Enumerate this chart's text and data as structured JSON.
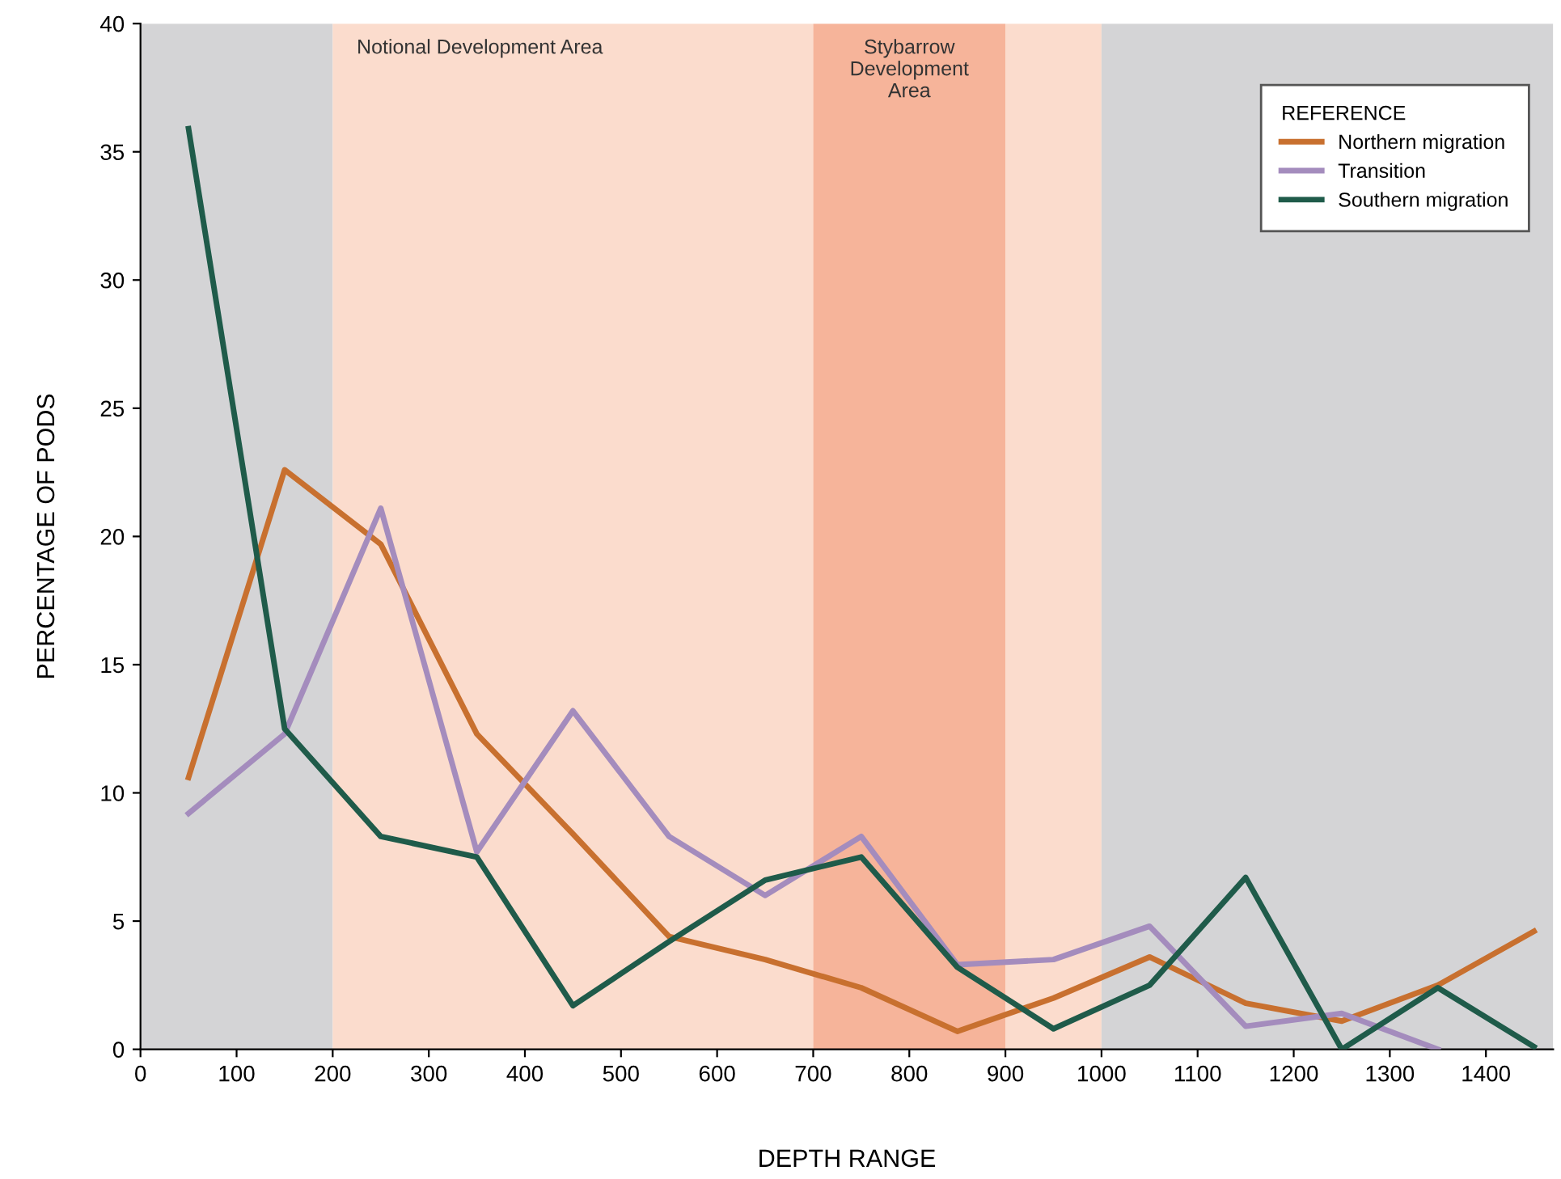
{
  "chart_data": {
    "type": "line",
    "xlabel": "DEPTH RANGE",
    "ylabel": "PERCENTAGE OF PODS",
    "legend_title": "REFERENCE",
    "legend": "top right",
    "grid": false,
    "x": [
      50,
      150,
      250,
      350,
      450,
      550,
      650,
      750,
      850,
      950,
      1050,
      1150,
      1250,
      1350,
      1450
    ],
    "xlim": [
      0,
      1470
    ],
    "ylim": [
      0,
      40
    ],
    "xticks": [
      0,
      100,
      200,
      300,
      400,
      500,
      600,
      700,
      800,
      900,
      1000,
      1100,
      1200,
      1300,
      1400
    ],
    "yticks": [
      0,
      5,
      10,
      15,
      20,
      25,
      30,
      35,
      40
    ],
    "series": [
      {
        "name": "Northern migration",
        "color": "#c8702f",
        "values": [
          10.6,
          22.6,
          19.7,
          12.3,
          8.4,
          4.4,
          3.5,
          2.4,
          0.7,
          2.0,
          3.6,
          1.8,
          1.1,
          2.5,
          4.6
        ]
      },
      {
        "name": "Transition",
        "color": "#a48cbd",
        "values": [
          9.2,
          12.3,
          21.1,
          7.7,
          13.2,
          8.3,
          6.0,
          8.3,
          3.3,
          3.5,
          4.8,
          0.9,
          1.4,
          0,
          null
        ]
      },
      {
        "name": "Southern migration",
        "color": "#1f5b4a",
        "values": [
          35.9,
          12.5,
          8.3,
          7.5,
          1.7,
          4.2,
          6.6,
          7.5,
          3.2,
          0.8,
          2.5,
          6.7,
          0,
          2.4,
          0.1
        ]
      }
    ],
    "bands": [
      {
        "axis": "x",
        "from": 0,
        "to": 200,
        "label": null,
        "color": "#d4d4d6"
      },
      {
        "axis": "x",
        "from": 200,
        "to": 700,
        "label": "Notional Development Area",
        "color": "#fbdccd"
      },
      {
        "axis": "x",
        "from": 700,
        "to": 900,
        "label": "Stybarrow\nDevelopment\nArea",
        "color": "#f6b49a"
      },
      {
        "axis": "x",
        "from": 900,
        "to": 1000,
        "label": null,
        "color": "#fbdccd"
      },
      {
        "axis": "x",
        "from": 1000,
        "to": 1470,
        "label": null,
        "color": "#d4d4d6"
      }
    ]
  }
}
